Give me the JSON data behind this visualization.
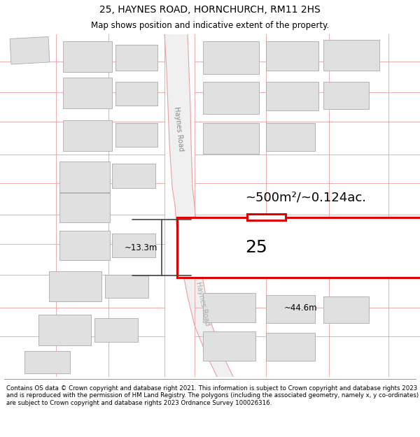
{
  "title_line1": "25, HAYNES ROAD, HORNCHURCH, RM11 2HS",
  "title_line2": "Map shows position and indicative extent of the property.",
  "footer_text": "Contains OS data © Crown copyright and database right 2021. This information is subject to Crown copyright and database rights 2023 and is reproduced with the permission of HM Land Registry. The polygons (including the associated geometry, namely x, y co-ordinates) are subject to Crown copyright and database rights 2023 Ordnance Survey 100026316.",
  "area_label": "~500m²/~0.124ac.",
  "width_label": "~44.6m",
  "height_label": "~13.3m",
  "number_label": "25",
  "road_label_upper": "Haynes Road",
  "road_label_lower": "Haynes Road",
  "map_bg": "#f8f8f8",
  "building_fill": "#e0e0e0",
  "road_line_color": "#e8a0a0",
  "highlight_color": "#dd0000",
  "dim_color": "#444444",
  "title_fontsize": 10,
  "subtitle_fontsize": 8.5,
  "footer_fontsize": 6.2
}
